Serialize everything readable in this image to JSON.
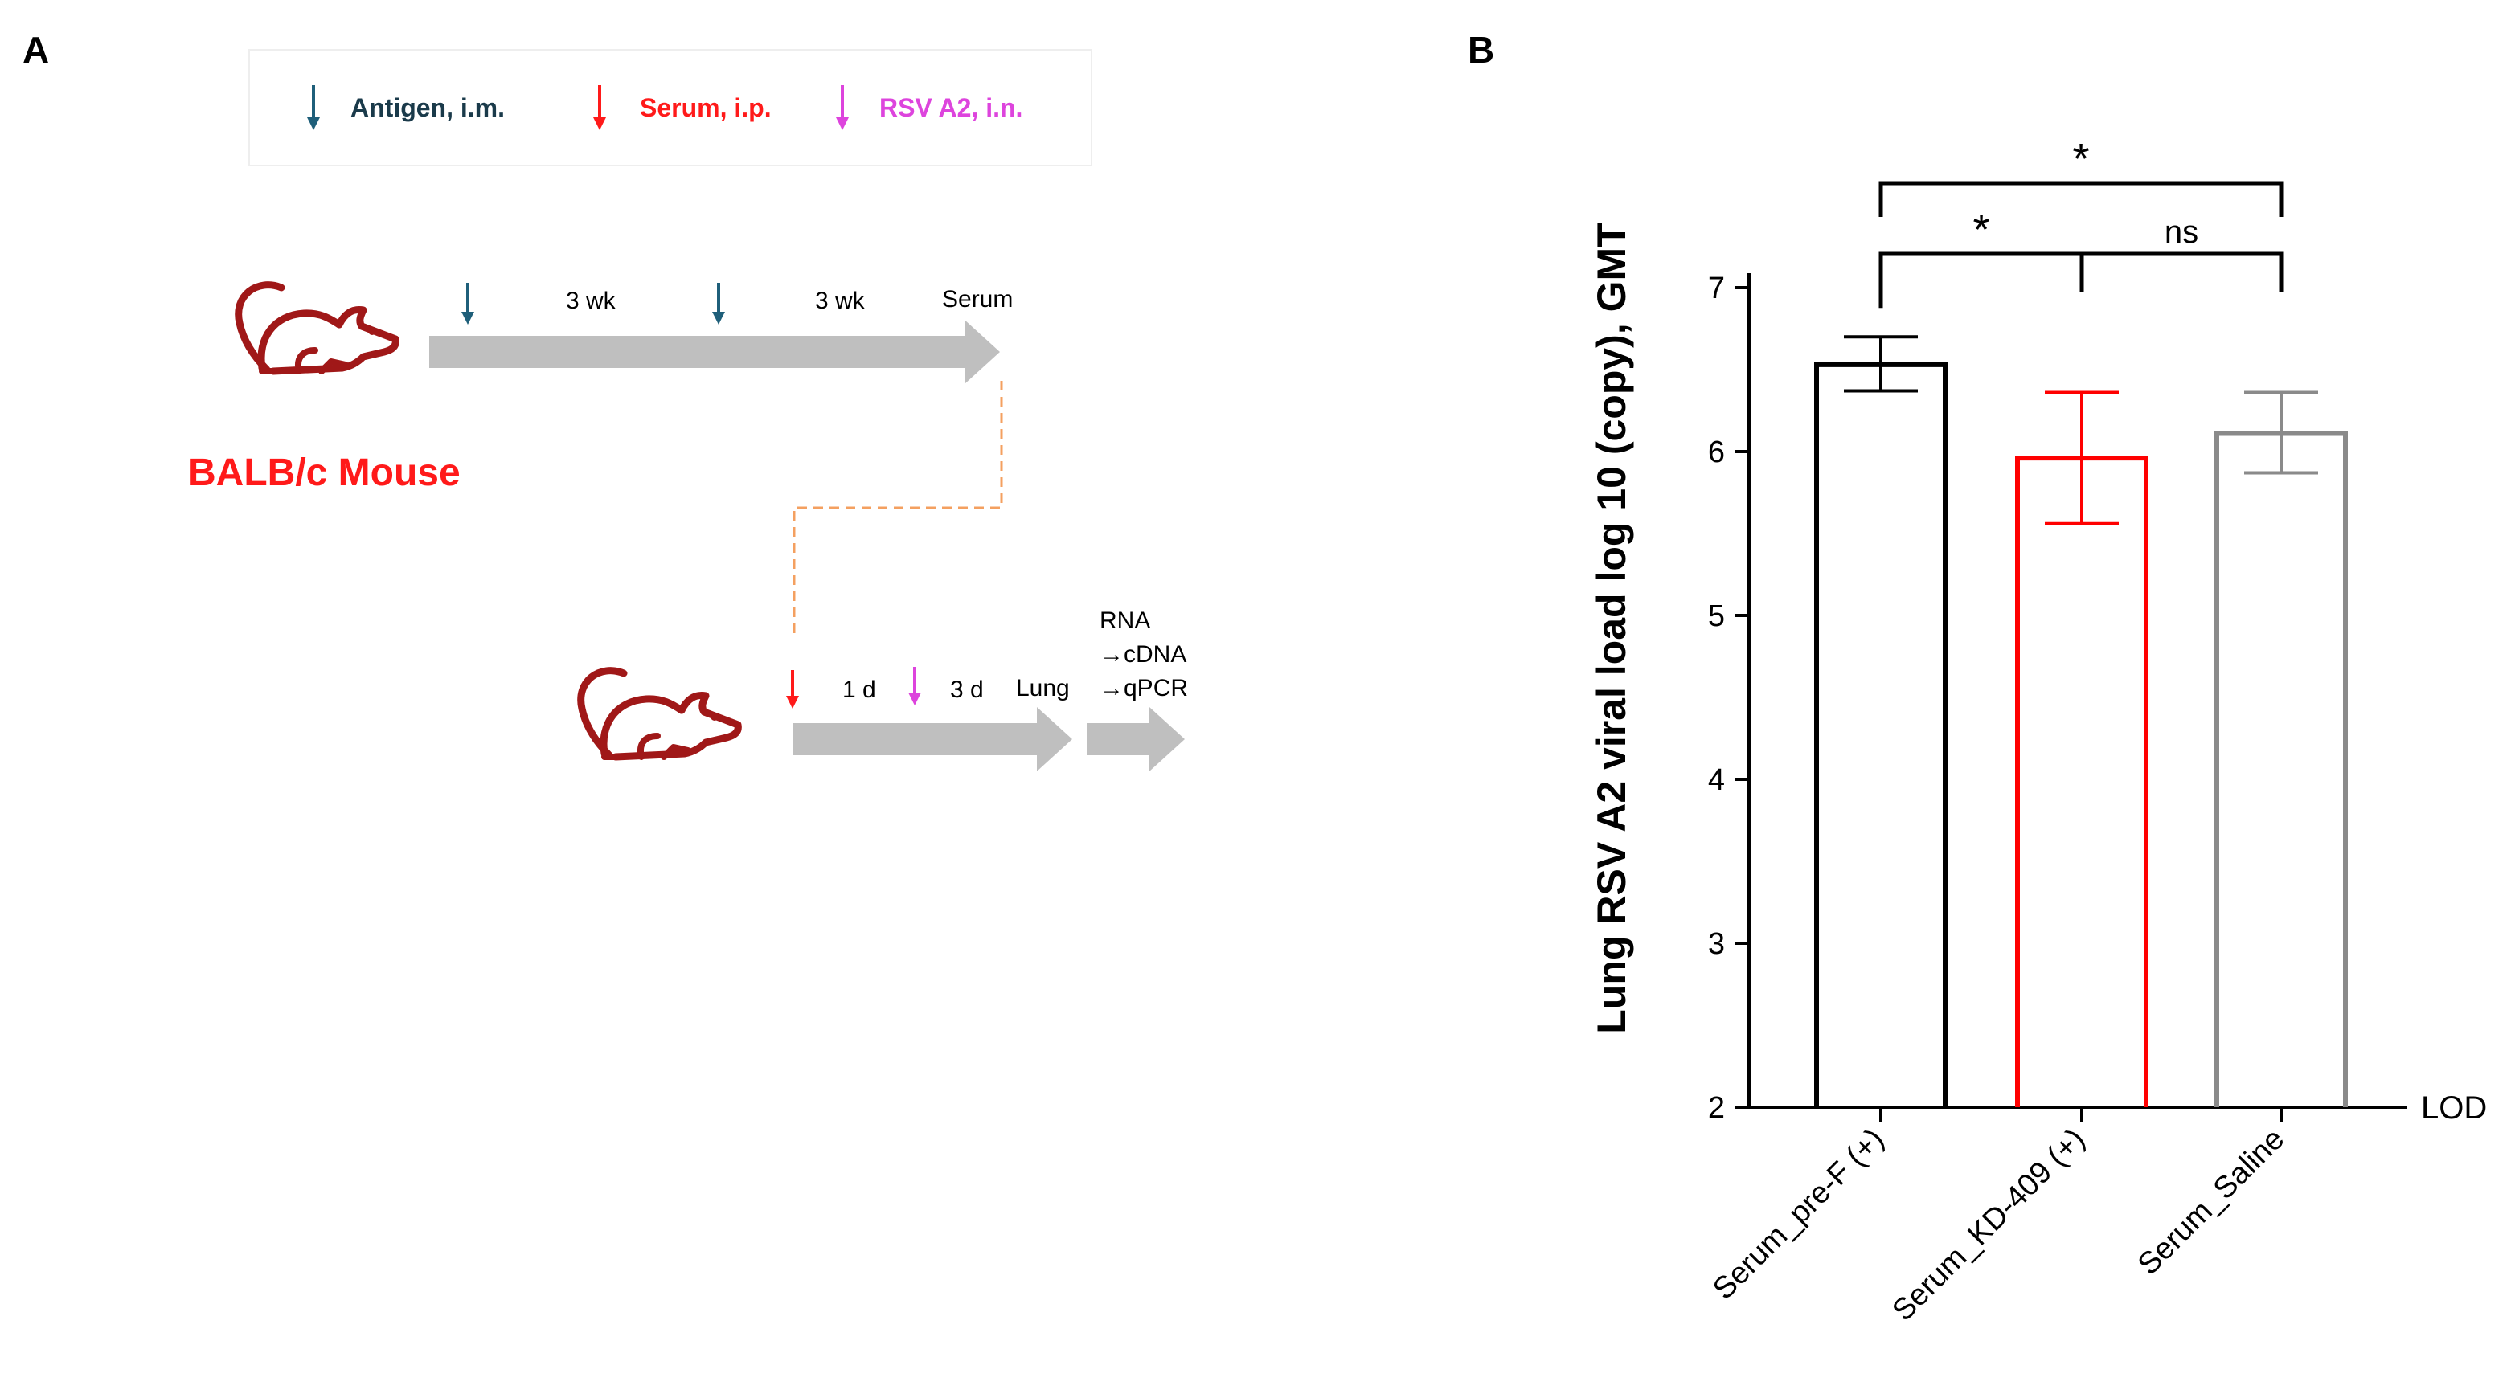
{
  "panel_a": {
    "label": "A",
    "legend": [
      {
        "text": "Antigen, i.m.",
        "color": "#1f5f7a"
      },
      {
        "text": "Serum, i.p.",
        "color": "#ff1a1a"
      },
      {
        "text": "RSV A2, i.n.",
        "color": "#dd44dd"
      }
    ],
    "mouse_label": "BALB/c Mouse",
    "timeline1": {
      "interval1": "3 wk",
      "interval2": "3 wk",
      "end": "Serum"
    },
    "timeline2": {
      "interval1": "1 d",
      "interval2": "3 d",
      "end": "Lung"
    },
    "processing": [
      "RNA",
      "→cDNA",
      "→qPCR"
    ],
    "colors": {
      "mouse": "#a01818",
      "arrow": "#bfbfbf",
      "connector": "#f4a060"
    }
  },
  "panel_b": {
    "label": "B",
    "chart_data": {
      "type": "bar",
      "categories": [
        "Serum_pre-F (+)",
        "Serum_KD-409 (+)",
        "Serum_Saline"
      ],
      "values": [
        6.53,
        5.96,
        6.11
      ],
      "error_low": [
        6.37,
        5.56,
        5.87
      ],
      "error_high": [
        6.7,
        6.36,
        6.36
      ],
      "colors": [
        "#000000",
        "#ff0000",
        "#8a8a8a"
      ],
      "ylabel": "Lung RSV A2 viral load log 10 (copy), GMT",
      "yticks": [
        "2",
        "3",
        "4",
        "5",
        "6",
        "7"
      ],
      "ylim": [
        2,
        7.2
      ],
      "reference_line": {
        "value": 2,
        "label": "LOD"
      },
      "significance": [
        {
          "from": 0,
          "to": 1,
          "label": "*"
        },
        {
          "from": 1,
          "to": 2,
          "label": "ns"
        },
        {
          "from": 0,
          "to": 2,
          "label": "*"
        }
      ]
    }
  }
}
